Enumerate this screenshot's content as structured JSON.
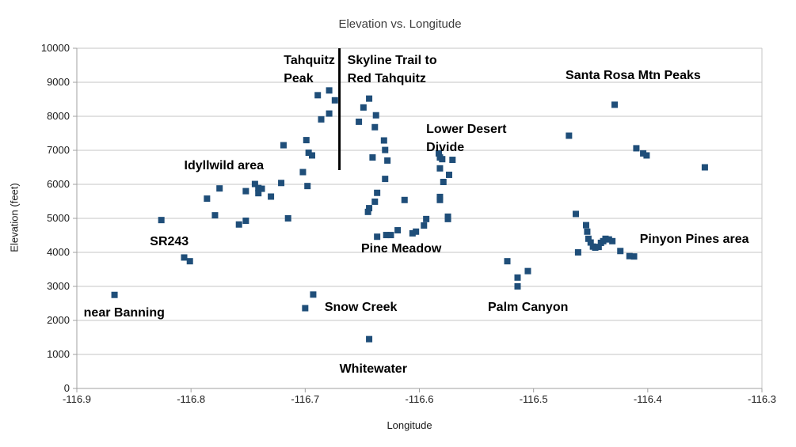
{
  "chart_data": {
    "type": "scatter",
    "title": "Elevation vs. Longitude",
    "xlabel": "Longitude",
    "ylabel": "Elevation (feet)",
    "xlim": [
      -116.9,
      -116.3
    ],
    "ylim": [
      0,
      10000
    ],
    "grid": "horizontal",
    "legend": "none",
    "x_ticks": [
      [
        -116.9,
        "-116.9"
      ],
      [
        -116.8,
        "-116.8"
      ],
      [
        -116.7,
        "-116.7"
      ],
      [
        -116.6,
        "-116.6"
      ],
      [
        -116.5,
        "-116.5"
      ],
      [
        -116.4,
        "-116.4"
      ],
      [
        -116.3,
        "-116.3"
      ]
    ],
    "y_ticks": [
      [
        0,
        "0"
      ],
      [
        1000,
        "1000"
      ],
      [
        2000,
        "2000"
      ],
      [
        3000,
        "3000"
      ],
      [
        4000,
        "4000"
      ],
      [
        5000,
        "5000"
      ],
      [
        6000,
        "6000"
      ],
      [
        7000,
        "7000"
      ],
      [
        8000,
        "8000"
      ],
      [
        9000,
        "9000"
      ],
      [
        10000,
        "10000"
      ]
    ],
    "colors": {
      "marker": "#1F4E79",
      "gridline": "#C6C6C6",
      "axis": "#A0A0A0",
      "divider": "#000000",
      "tick_text": "#1a1a1a"
    },
    "marker": {
      "shape": "square",
      "size": 8
    },
    "series": [
      {
        "points": [
          [
            -116.867,
            2750
          ],
          [
            -116.826,
            4950
          ],
          [
            -116.806,
            3850
          ],
          [
            -116.801,
            3740
          ],
          [
            -116.786,
            5580
          ],
          [
            -116.775,
            5880
          ],
          [
            -116.779,
            5090
          ],
          [
            -116.758,
            4820
          ],
          [
            -116.752,
            4930
          ],
          [
            -116.752,
            5800
          ],
          [
            -116.744,
            6010
          ],
          [
            -116.741,
            5890
          ],
          [
            -116.741,
            5740
          ],
          [
            -116.738,
            5870
          ],
          [
            -116.73,
            5640
          ],
          [
            -116.721,
            6040
          ],
          [
            -116.719,
            7150
          ],
          [
            -116.715,
            5000
          ],
          [
            -116.702,
            6360
          ],
          [
            -116.698,
            5950
          ],
          [
            -116.699,
            7300
          ],
          [
            -116.697,
            6930
          ],
          [
            -116.694,
            6850
          ],
          [
            -116.689,
            8620
          ],
          [
            -116.679,
            8760
          ],
          [
            -116.674,
            8470
          ],
          [
            -116.686,
            7910
          ],
          [
            -116.679,
            8080
          ],
          [
            -116.693,
            2760
          ],
          [
            -116.7,
            2360
          ],
          [
            -116.644,
            1450
          ],
          [
            -116.644,
            8520
          ],
          [
            -116.649,
            8260
          ],
          [
            -116.638,
            8030
          ],
          [
            -116.653,
            7840
          ],
          [
            -116.639,
            7680
          ],
          [
            -116.631,
            7290
          ],
          [
            -116.63,
            7010
          ],
          [
            -116.641,
            6790
          ],
          [
            -116.628,
            6700
          ],
          [
            -116.63,
            6160
          ],
          [
            -116.637,
            5750
          ],
          [
            -116.639,
            5490
          ],
          [
            -116.644,
            5300
          ],
          [
            -116.645,
            5190
          ],
          [
            -116.613,
            5540
          ],
          [
            -116.637,
            4460
          ],
          [
            -116.629,
            4510
          ],
          [
            -116.625,
            4510
          ],
          [
            -116.619,
            4650
          ],
          [
            -116.606,
            4560
          ],
          [
            -116.603,
            4610
          ],
          [
            -116.596,
            4790
          ],
          [
            -116.594,
            4980
          ],
          [
            -116.583,
            6910
          ],
          [
            -116.582,
            6790
          ],
          [
            -116.58,
            6740
          ],
          [
            -116.571,
            6720
          ],
          [
            -116.582,
            6470
          ],
          [
            -116.574,
            6280
          ],
          [
            -116.579,
            6070
          ],
          [
            -116.582,
            5630
          ],
          [
            -116.582,
            5540
          ],
          [
            -116.575,
            5050
          ],
          [
            -116.575,
            4980
          ],
          [
            -116.523,
            3740
          ],
          [
            -116.505,
            3450
          ],
          [
            -116.514,
            3260
          ],
          [
            -116.514,
            3000
          ],
          [
            -116.469,
            7430
          ],
          [
            -116.429,
            8340
          ],
          [
            -116.41,
            7060
          ],
          [
            -116.404,
            6910
          ],
          [
            -116.401,
            6850
          ],
          [
            -116.35,
            6500
          ],
          [
            -116.463,
            5130
          ],
          [
            -116.454,
            4800
          ],
          [
            -116.453,
            4610
          ],
          [
            -116.452,
            4400
          ],
          [
            -116.45,
            4290
          ],
          [
            -116.448,
            4170
          ],
          [
            -116.446,
            4140
          ],
          [
            -116.443,
            4160
          ],
          [
            -116.441,
            4280
          ],
          [
            -116.439,
            4330
          ],
          [
            -116.437,
            4400
          ],
          [
            -116.434,
            4380
          ],
          [
            -116.431,
            4330
          ],
          [
            -116.461,
            4000
          ],
          [
            -116.424,
            4040
          ],
          [
            -116.416,
            3890
          ],
          [
            -116.412,
            3880
          ]
        ]
      }
    ],
    "annotations": [
      {
        "text": "Tahquitz\nPeak",
        "lon": -116.674,
        "elev": 9900,
        "align": "right"
      },
      {
        "text": "Skyline Trail to\nRed Tahquitz",
        "lon": -116.663,
        "elev": 9900,
        "align": "left"
      },
      {
        "text": "Santa Rosa Mtn Peaks",
        "lon": -116.472,
        "elev": 9470,
        "align": "left"
      },
      {
        "text": "Lower Desert\nDivide",
        "lon": -116.594,
        "elev": 7880,
        "align": "left"
      },
      {
        "text": "Idyllwild area",
        "lon": -116.806,
        "elev": 6810,
        "align": "left"
      },
      {
        "text": "SR243",
        "lon": -116.836,
        "elev": 4580,
        "align": "left"
      },
      {
        "text": "Pine Meadow",
        "lon": -116.651,
        "elev": 4370,
        "align": "left"
      },
      {
        "text": "Pinyon Pines area",
        "lon": -116.407,
        "elev": 4650,
        "align": "left"
      },
      {
        "text": "near Banning",
        "lon": -116.894,
        "elev": 2490,
        "align": "left"
      },
      {
        "text": "Snow Creek",
        "lon": -116.683,
        "elev": 2650,
        "align": "left"
      },
      {
        "text": "Palm Canyon",
        "lon": -116.54,
        "elev": 2650,
        "align": "left"
      },
      {
        "text": "Whitewater",
        "lon": -116.67,
        "elev": 840,
        "align": "left"
      }
    ],
    "divider_line": {
      "lon": -116.67,
      "elev_top": 10000,
      "elev_bottom": 6420
    }
  }
}
